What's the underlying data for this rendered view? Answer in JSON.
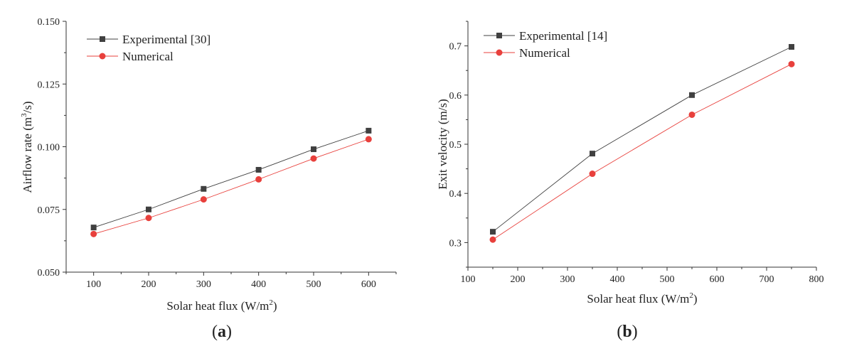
{
  "chart_data": [
    {
      "type": "line",
      "panel": "a",
      "xlabel_main": "Solar heat flux (W/m",
      "xlabel_sup": "2",
      "xlabel_end": ")",
      "ylabel_main": "Airflow rate (m",
      "ylabel_sup": "3",
      "ylabel_end": "/s)",
      "xlim": [
        50,
        650
      ],
      "ylim": [
        0.05,
        0.15
      ],
      "xticks": [
        100,
        200,
        300,
        400,
        500,
        600
      ],
      "yticks": [
        0.05,
        0.075,
        0.1,
        0.125,
        0.15
      ],
      "ytick_labels": [
        "0.050",
        "0.075",
        "0.100",
        "0.125",
        "0.150"
      ],
      "legend_position": "top-left",
      "series": [
        {
          "name": "Experimental [30]",
          "color": "#404040",
          "marker": "square",
          "x": [
            100,
            200,
            300,
            400,
            500,
            600
          ],
          "y": [
            0.0678,
            0.075,
            0.0832,
            0.0908,
            0.099,
            0.1064
          ]
        },
        {
          "name": "Numerical",
          "color": "#e8403c",
          "marker": "circle",
          "x": [
            100,
            200,
            300,
            400,
            500,
            600
          ],
          "y": [
            0.0652,
            0.0716,
            0.079,
            0.087,
            0.0953,
            0.103
          ]
        }
      ]
    },
    {
      "type": "line",
      "panel": "b",
      "xlabel_main": "Solar heat flux (W/m",
      "xlabel_sup": "2",
      "xlabel_end": ")",
      "ylabel_main": "Exit velocity (m/s)",
      "ylabel_sup": "",
      "ylabel_end": "",
      "xlim": [
        100,
        800
      ],
      "ylim": [
        0.25,
        0.75
      ],
      "xticks": [
        100,
        200,
        300,
        400,
        500,
        600,
        700,
        800
      ],
      "yticks": [
        0.3,
        0.4,
        0.5,
        0.6,
        0.7
      ],
      "ytick_labels": [
        "0.3",
        "0.4",
        "0.5",
        "0.6",
        "0.7"
      ],
      "legend_position": "top-left",
      "series": [
        {
          "name": "Experimental [14]",
          "color": "#404040",
          "marker": "square",
          "x": [
            150,
            350,
            550,
            750
          ],
          "y": [
            0.322,
            0.481,
            0.6,
            0.698
          ]
        },
        {
          "name": "Numerical",
          "color": "#e8403c",
          "marker": "circle",
          "x": [
            150,
            350,
            550,
            750
          ],
          "y": [
            0.306,
            0.44,
            0.56,
            0.663
          ]
        }
      ]
    }
  ]
}
